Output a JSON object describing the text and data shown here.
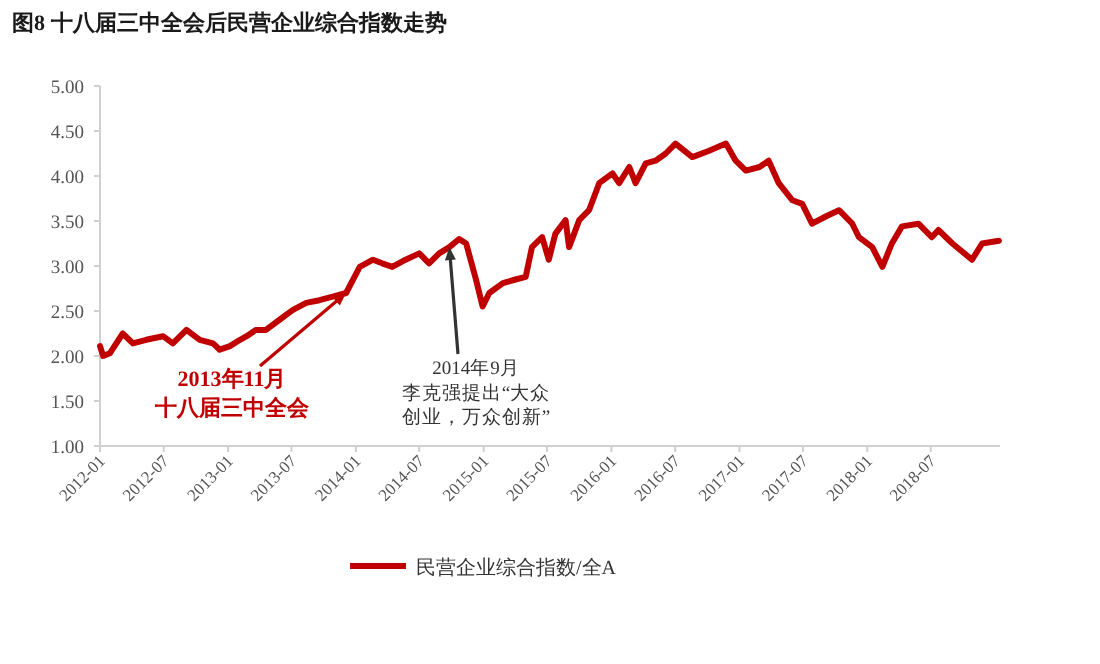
{
  "chart_data": {
    "type": "line",
    "title": "图8  十八届三中全会后民营企业综合指数走势",
    "x": [
      "2012-01-01",
      "2012-01-10",
      "2012-01-29",
      "2012-03-06",
      "2012-04-04",
      "2012-05-12",
      "2012-06-29",
      "2012-07-27",
      "2012-09-04",
      "2012-10-12",
      "2012-11-19",
      "2012-12-08",
      "2013-01-06",
      "2013-02-04",
      "2013-02-23",
      "2013-03-21",
      "2013-04-19",
      "2013-05-27",
      "2013-07-04",
      "2013-08-12",
      "2013-09-19",
      "2013-10-27",
      "2013-12-04",
      "2014-01-12",
      "2014-02-19",
      "2014-03-17",
      "2014-04-15",
      "2014-05-23",
      "2014-07-01",
      "2014-07-29",
      "2014-08-27",
      "2014-09-25",
      "2014-10-23",
      "2014-11-12",
      "2014-12-10",
      "2014-12-29",
      "2015-01-17",
      "2015-02-25",
      "2015-04-02",
      "2015-05-01",
      "2015-05-19",
      "2015-06-17",
      "2015-07-06",
      "2015-07-25",
      "2015-08-23",
      "2015-09-02",
      "2015-10-01",
      "2015-10-29",
      "2015-11-27",
      "2016-01-04",
      "2016-01-23",
      "2016-02-21",
      "2016-03-10",
      "2016-04-08",
      "2016-05-06",
      "2016-06-04",
      "2016-07-02",
      "2016-08-19",
      "2016-10-06",
      "2016-11-23",
      "2016-12-21",
      "2017-01-19",
      "2017-02-27",
      "2017-03-25",
      "2017-04-23",
      "2017-06-01",
      "2017-06-29",
      "2017-07-27",
      "2017-09-04",
      "2017-10-12",
      "2017-11-19",
      "2017-12-08",
      "2018-01-15",
      "2018-02-13",
      "2018-03-12",
      "2018-04-10",
      "2018-05-27",
      "2018-07-04",
      "2018-07-23",
      "2018-09-01",
      "2018-10-27",
      "2018-11-25",
      "2019-01-12"
    ],
    "series": [
      {
        "name": "民营企业综合指数/全A",
        "color": "#c00000",
        "values": [
          2.11,
          2.0,
          2.03,
          2.25,
          2.14,
          2.18,
          2.22,
          2.14,
          2.29,
          2.18,
          2.14,
          2.07,
          2.11,
          2.18,
          2.22,
          2.29,
          2.29,
          2.4,
          2.51,
          2.59,
          2.62,
          2.66,
          2.7,
          2.99,
          3.07,
          3.03,
          2.99,
          3.07,
          3.14,
          3.03,
          3.14,
          3.21,
          3.3,
          3.25,
          2.85,
          2.55,
          2.7,
          2.81,
          2.85,
          2.88,
          3.21,
          3.32,
          3.07,
          3.36,
          3.51,
          3.21,
          3.51,
          3.62,
          3.92,
          4.03,
          3.92,
          4.1,
          3.92,
          4.14,
          4.17,
          4.25,
          4.36,
          4.21,
          4.28,
          4.36,
          4.17,
          4.06,
          4.1,
          4.17,
          3.92,
          3.73,
          3.69,
          3.47,
          3.55,
          3.62,
          3.47,
          3.32,
          3.21,
          2.99,
          3.25,
          3.44,
          3.47,
          3.32,
          3.4,
          3.25,
          3.07,
          3.25,
          3.28
        ]
      }
    ],
    "xlim": [
      "2012-01-01",
      "2019-01-15"
    ],
    "xticks": [
      "2012-01",
      "2012-07",
      "2013-01",
      "2013-07",
      "2014-01",
      "2014-07",
      "2015-01",
      "2015-07",
      "2016-01",
      "2016-07",
      "2017-01",
      "2017-07",
      "2018-01",
      "2018-07"
    ],
    "ylim": [
      1,
      5
    ],
    "yticks": [
      {
        "value": 1,
        "label": "1.00"
      },
      {
        "value": 1.5,
        "label": "1.50"
      },
      {
        "value": 2,
        "label": "2.00"
      },
      {
        "value": 2.5,
        "label": "2.50"
      },
      {
        "value": 3,
        "label": "3.00"
      },
      {
        "value": 3.5,
        "label": "3.50"
      },
      {
        "value": 4,
        "label": "4.00"
      },
      {
        "value": 4.5,
        "label": "4.50"
      },
      {
        "value": 5,
        "label": "5.00"
      }
    ],
    "annotations": [
      {
        "text": "2013年11月十八届三中全会",
        "x": "2013-12-04",
        "y": 2.7
      },
      {
        "text": "2014年9月李克强提出“大众创业，万众创新”",
        "x": "2014-09-25",
        "y": 3.21
      }
    ],
    "legend": "bottom",
    "grid": false,
    "marker": "none",
    "line_style": "solid"
  }
}
